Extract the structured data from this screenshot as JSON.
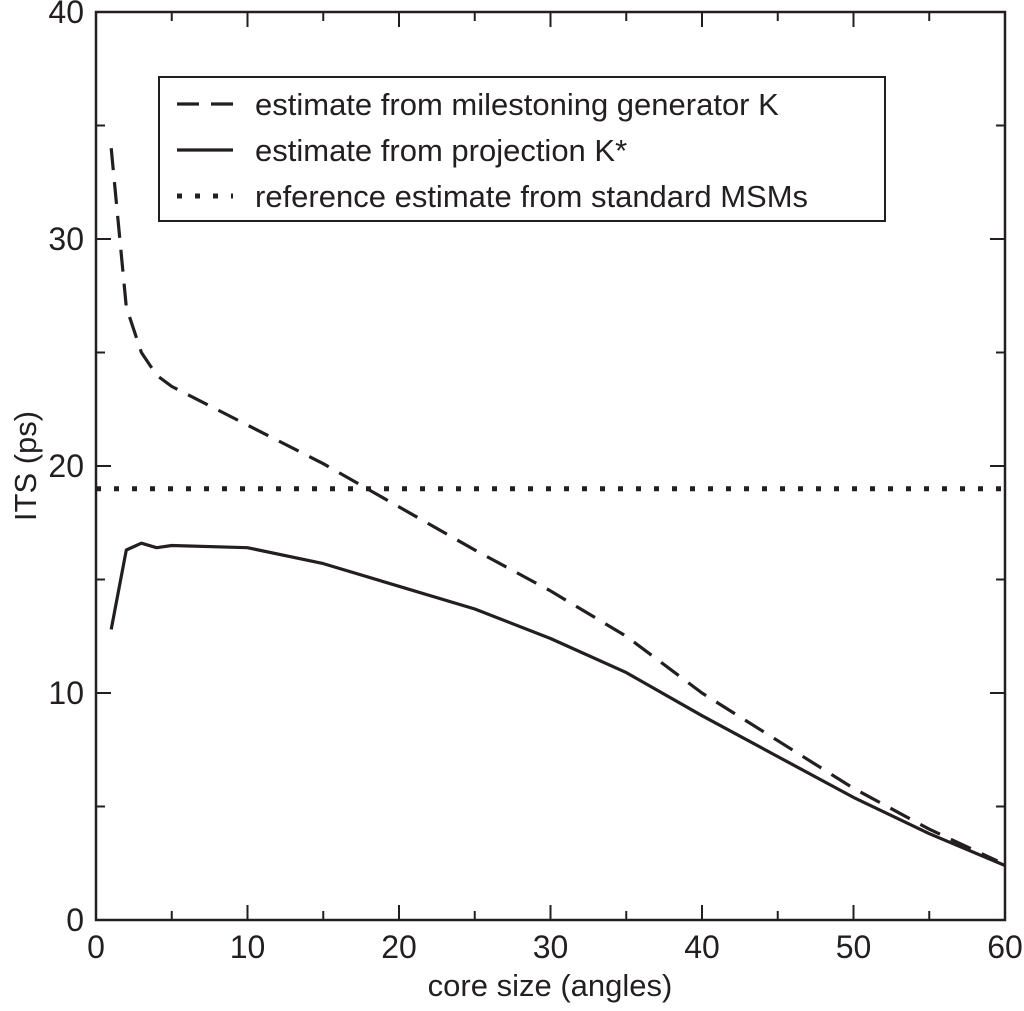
{
  "chart_data": {
    "type": "line",
    "title": "",
    "xlabel": "core size (angles)",
    "ylabel": "ITS (ps)",
    "xlim": [
      0,
      60
    ],
    "ylim": [
      0,
      40
    ],
    "x_ticks": [
      0,
      10,
      20,
      30,
      40,
      50,
      60
    ],
    "y_ticks": [
      0,
      10,
      20,
      30,
      40
    ],
    "x_minor_step": 5,
    "y_minor_step": 5,
    "grid": false,
    "legend_position": "top-right",
    "series": [
      {
        "name": "estimate from milestoning generator K",
        "style": "dashed",
        "x": [
          1,
          2,
          3,
          4,
          5,
          10,
          15,
          20,
          25,
          30,
          35,
          40,
          45,
          50,
          55,
          59.5
        ],
        "y": [
          34.0,
          27.0,
          25.0,
          24.0,
          23.5,
          21.8,
          20.1,
          18.2,
          16.3,
          14.5,
          12.5,
          10.0,
          7.9,
          5.8,
          4.0,
          2.6
        ]
      },
      {
        "name": "estimate from projection K*",
        "style": "solid",
        "x": [
          1,
          2,
          3,
          4,
          5,
          10,
          15,
          20,
          25,
          30,
          35,
          40,
          45,
          50,
          55,
          60
        ],
        "y": [
          12.8,
          16.3,
          16.6,
          16.4,
          16.5,
          16.4,
          15.7,
          14.7,
          13.7,
          12.4,
          10.9,
          9.0,
          7.2,
          5.4,
          3.8,
          2.4
        ]
      },
      {
        "name": "reference estimate from standard MSMs",
        "style": "dotted",
        "x": [
          0,
          60
        ],
        "y": [
          19.0,
          19.0
        ]
      }
    ]
  },
  "colors": {
    "ink": "#231f20",
    "background": "#ffffff"
  }
}
